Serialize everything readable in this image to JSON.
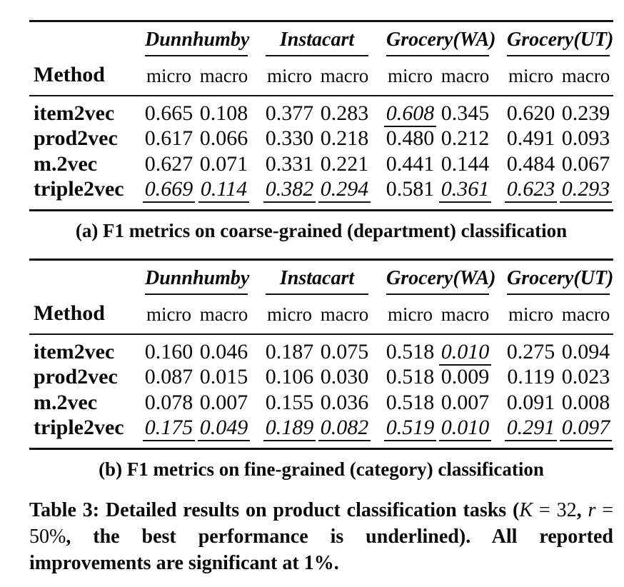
{
  "colors": {
    "text": "#0a0a0a",
    "background": "#ffffff",
    "rule": "#121212"
  },
  "tables": [
    {
      "id": "a",
      "caption": "(a) F1 metrics on coarse-grained (department) classification",
      "method_header": "Method",
      "groups": [
        "Dunnhumby",
        "Instacart",
        "Grocery(WA)",
        "Grocery(UT)"
      ],
      "subheaders": [
        "micro",
        "macro"
      ],
      "rows": [
        {
          "method": "item2vec",
          "values": [
            "0.665",
            "0.108",
            "0.377",
            "0.283",
            "0.608",
            "0.345",
            "0.620",
            "0.239"
          ],
          "underlined": [
            4
          ]
        },
        {
          "method": "prod2vec",
          "values": [
            "0.617",
            "0.066",
            "0.330",
            "0.218",
            "0.480",
            "0.212",
            "0.491",
            "0.093"
          ],
          "underlined": []
        },
        {
          "method": "m.2vec",
          "values": [
            "0.627",
            "0.071",
            "0.331",
            "0.221",
            "0.441",
            "0.144",
            "0.484",
            "0.067"
          ],
          "underlined": []
        },
        {
          "method": "triple2vec",
          "values": [
            "0.669",
            "0.114",
            "0.382",
            "0.294",
            "0.581",
            "0.361",
            "0.623",
            "0.293"
          ],
          "underlined": [
            0,
            1,
            2,
            3,
            5,
            6,
            7
          ]
        }
      ]
    },
    {
      "id": "b",
      "caption": "(b) F1 metrics on fine-grained (category) classification",
      "method_header": "Method",
      "groups": [
        "Dunnhumby",
        "Instacart",
        "Grocery(WA)",
        "Grocery(UT)"
      ],
      "subheaders": [
        "micro",
        "macro"
      ],
      "rows": [
        {
          "method": "item2vec",
          "values": [
            "0.160",
            "0.046",
            "0.187",
            "0.075",
            "0.518",
            "0.010",
            "0.275",
            "0.094"
          ],
          "underlined": [
            5
          ]
        },
        {
          "method": "prod2vec",
          "values": [
            "0.087",
            "0.015",
            "0.106",
            "0.030",
            "0.518",
            "0.009",
            "0.119",
            "0.023"
          ],
          "underlined": []
        },
        {
          "method": "m.2vec",
          "values": [
            "0.078",
            "0.007",
            "0.155",
            "0.036",
            "0.518",
            "0.007",
            "0.091",
            "0.008"
          ],
          "underlined": []
        },
        {
          "method": "triple2vec",
          "values": [
            "0.175",
            "0.049",
            "0.189",
            "0.082",
            "0.519",
            "0.010",
            "0.291",
            "0.097"
          ],
          "underlined": [
            0,
            1,
            2,
            3,
            4,
            5,
            6,
            7
          ]
        }
      ]
    }
  ],
  "main_caption": {
    "segments": [
      {
        "text": "Table 3: Detailed results on product classification tasks (",
        "style": "bold"
      },
      {
        "text": "K",
        "style": "mathvar"
      },
      {
        "text": " = 32",
        "style": "math"
      },
      {
        "text": ", ",
        "style": "bold"
      },
      {
        "text": "r",
        "style": "mathvar"
      },
      {
        "text": " = 50%",
        "style": "math"
      },
      {
        "text": ", the best performance is underlined). All reported improvements are significant at 1%.",
        "style": "bold"
      }
    ]
  }
}
